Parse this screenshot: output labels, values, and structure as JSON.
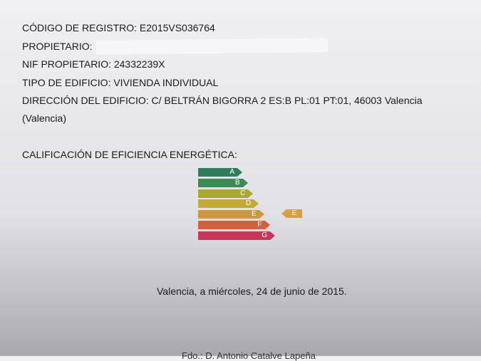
{
  "fields": {
    "codigo": "CÓDIGO DE REGISTRO: E2015VS036764",
    "propietario": "PROPIETARIO:",
    "nif": "NIF PROPIETARIO: 24332239X",
    "tipo": "TIPO DE EDIFICIO: VIVIENDA INDIVIDUAL",
    "direccion": "DIRECCIÓN DEL EDIFICIO: C/ BELTRÁN BIGORRA 2 ES:B PL:01 PT:01, 46003 Valencia",
    "direccion2": "(Valencia)"
  },
  "calificacion": {
    "title": "CALIFICACIÓN DE EFICIENCIA ENERGÉTICA:",
    "classes": [
      {
        "label": "A",
        "color": "#2f7d5a"
      },
      {
        "label": "B",
        "color": "#3d8a56"
      },
      {
        "label": "C",
        "color": "#a8a832"
      },
      {
        "label": "D",
        "color": "#c2aa36"
      },
      {
        "label": "E",
        "color": "#cc9a3e"
      },
      {
        "label": "F",
        "color": "#d2603e"
      },
      {
        "label": "G",
        "color": "#c8365a"
      }
    ],
    "rating": "E"
  },
  "fecha": "Valencia, a miércoles, 24 de junio de 2015.",
  "firma": "Fdo.: D. Antonio Catalve Lapeña"
}
